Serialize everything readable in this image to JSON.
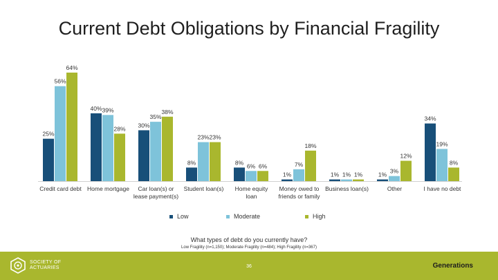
{
  "title": "Current Debt Obligations by Financial Fragility",
  "question": "What types of debt do you currently have?",
  "sample_note": "Low Fragility (n=1,150); Moderate Fragility (n=484); High Fragility (n=367)",
  "footer": {
    "logo_line1": "SOCIETY OF",
    "logo_line2": "ACTUARIES",
    "page_number": "36",
    "brand": "Generations"
  },
  "colors": {
    "low": "#184f79",
    "moderate": "#7ec3da",
    "high": "#a9b72e",
    "footer": "#a9b72e"
  },
  "chart_data": {
    "type": "bar",
    "categories": [
      [
        "Credit card debt"
      ],
      [
        "Home mortgage"
      ],
      [
        "Car loan(s) or",
        "lease payment(s)"
      ],
      [
        "Student loan(s)"
      ],
      [
        "Home equity",
        "loan"
      ],
      [
        "Money owed to",
        "friends or family"
      ],
      [
        "Business loan(s)"
      ],
      [
        "Other"
      ],
      [
        "I have no debt"
      ]
    ],
    "series": [
      {
        "name": "Low",
        "values": [
          25,
          40,
          30,
          8,
          8,
          1,
          1,
          1,
          34
        ]
      },
      {
        "name": "Moderate",
        "values": [
          56,
          39,
          35,
          23,
          6,
          7,
          1,
          3,
          19
        ]
      },
      {
        "name": "High",
        "values": [
          64,
          28,
          38,
          23,
          6,
          18,
          1,
          12,
          8
        ]
      }
    ],
    "unit": "%",
    "ylim": [
      0,
      64
    ],
    "legend_position": "bottom",
    "grid": false
  }
}
